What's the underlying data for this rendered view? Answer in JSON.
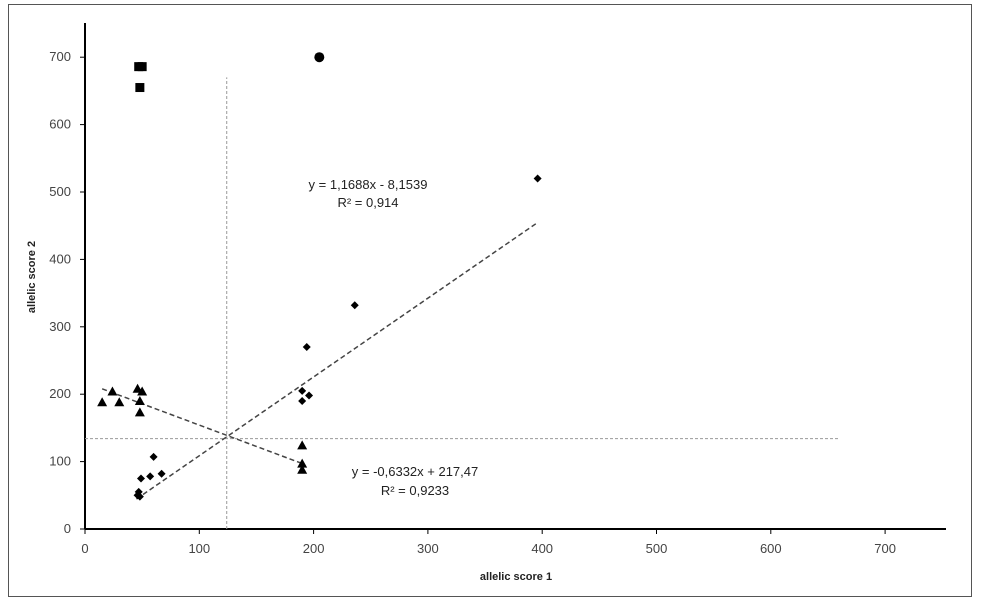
{
  "chart_data": {
    "type": "scatter",
    "xlabel": "allelic score 1",
    "ylabel": "allelic score 2",
    "xlim": [
      0,
      750
    ],
    "ylim": [
      0,
      750
    ],
    "x_ticks": [
      0,
      100,
      200,
      300,
      400,
      500,
      600,
      700
    ],
    "y_ticks": [
      0,
      100,
      200,
      300,
      400,
      500,
      600,
      700
    ],
    "grid": false,
    "legend": "none",
    "reference_lines": {
      "vertical_x": 124,
      "horizontal_y": 134,
      "style": "dashed",
      "color": "#999999"
    },
    "series": [
      {
        "marker": "diamond",
        "points": [
          {
            "x": 47,
            "y": 55
          },
          {
            "x": 46,
            "y": 50
          },
          {
            "x": 48,
            "y": 48
          },
          {
            "x": 49,
            "y": 75
          },
          {
            "x": 57,
            "y": 78
          },
          {
            "x": 60,
            "y": 107
          },
          {
            "x": 67,
            "y": 82
          },
          {
            "x": 190,
            "y": 190
          },
          {
            "x": 190,
            "y": 205
          },
          {
            "x": 196,
            "y": 198
          },
          {
            "x": 194,
            "y": 270
          },
          {
            "x": 236,
            "y": 332
          },
          {
            "x": 396,
            "y": 520
          }
        ]
      },
      {
        "marker": "triangle",
        "points": [
          {
            "x": 15,
            "y": 188
          },
          {
            "x": 24,
            "y": 204
          },
          {
            "x": 30,
            "y": 188
          },
          {
            "x": 46,
            "y": 208
          },
          {
            "x": 50,
            "y": 204
          },
          {
            "x": 48,
            "y": 190
          },
          {
            "x": 48,
            "y": 173
          },
          {
            "x": 190,
            "y": 124
          },
          {
            "x": 190,
            "y": 97
          },
          {
            "x": 190,
            "y": 88
          }
        ]
      },
      {
        "marker": "square",
        "points": [
          {
            "x": 47,
            "y": 686
          },
          {
            "x": 50,
            "y": 686
          },
          {
            "x": 48,
            "y": 655
          }
        ]
      },
      {
        "marker": "circle",
        "points": [
          {
            "x": 205,
            "y": 700
          }
        ]
      }
    ],
    "trendlines": [
      {
        "equation": "y = 1,1688x - 8,1539",
        "r2": "R² = 0,914",
        "x_range": [
          45,
          396
        ]
      },
      {
        "equation": "y = -0,6332x + 217,47",
        "r2": "R² = 0,9233",
        "x_range": [
          15,
          190
        ]
      }
    ]
  }
}
